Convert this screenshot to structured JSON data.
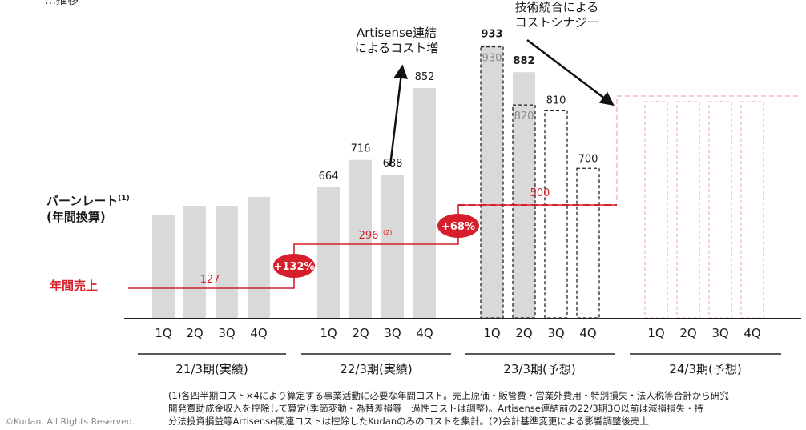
{
  "header_fragment": "…推移",
  "burn_label": {
    "line1": "バーンレート",
    "sup": "(1)",
    "line2": "(年間換算)"
  },
  "sales_label": "年間売上",
  "annotation_artisense": {
    "line1": "Artisense連結",
    "line2": "によるコスト増"
  },
  "annotation_synergy": {
    "line1": "技術統合による",
    "line2": "コストシナジー"
  },
  "footnote": {
    "line1": "(1)各四半期コスト×4により算定する事業活動に必要な年間コスト。売上原価・販管費・営業外費用・特別損失・法人税等合計から研究",
    "line2": "開発費助成金収入を控除して算定(季節変動・為替差損等一過性コストは調整)。Artisense連結前の22/3期3Q以前は減損損失・持",
    "line3": "分法投資損益等Artisense関連コストは控除したKudanのみのコストを集計。(2)会計基準変更による影響調整後売上"
  },
  "copyright": "©Kudan. All Rights Reserved.",
  "colors": {
    "bar": "#d9d9d9",
    "red": "#d61f2a",
    "pink": "#f4b8c0",
    "axis": "#222222"
  },
  "chart_data": {
    "type": "bar",
    "title": "",
    "periods": [
      {
        "label": "21/3期(実績)",
        "quarters": [
          "1Q",
          "2Q",
          "3Q",
          "4Q"
        ],
        "burn": [
          null,
          null,
          null,
          null
        ],
        "style": "solid",
        "annual_sales": "127"
      },
      {
        "label": "22/3期(実績)",
        "quarters": [
          "1Q",
          "2Q",
          "3Q",
          "4Q"
        ],
        "burn": [
          664,
          716,
          688,
          852
        ],
        "style": "solid",
        "annual_sales": "296",
        "annual_sales_note": "(2)"
      },
      {
        "label": "23/3期(予想)",
        "quarters": [
          "1Q",
          "2Q",
          "3Q",
          "4Q"
        ],
        "burn": [
          933,
          882,
          null,
          null
        ],
        "forecast": [
          930,
          820,
          810,
          700
        ],
        "style": "mixed",
        "annual_sales": "500"
      },
      {
        "label": "24/3期(予想)",
        "quarters": [
          "1Q",
          "2Q",
          "3Q",
          "4Q"
        ],
        "burn": [
          null,
          null,
          null,
          null
        ],
        "style": "forecast-pink",
        "annual_sales": ""
      }
    ],
    "growth_badges": [
      "+132%",
      "+68%"
    ]
  }
}
